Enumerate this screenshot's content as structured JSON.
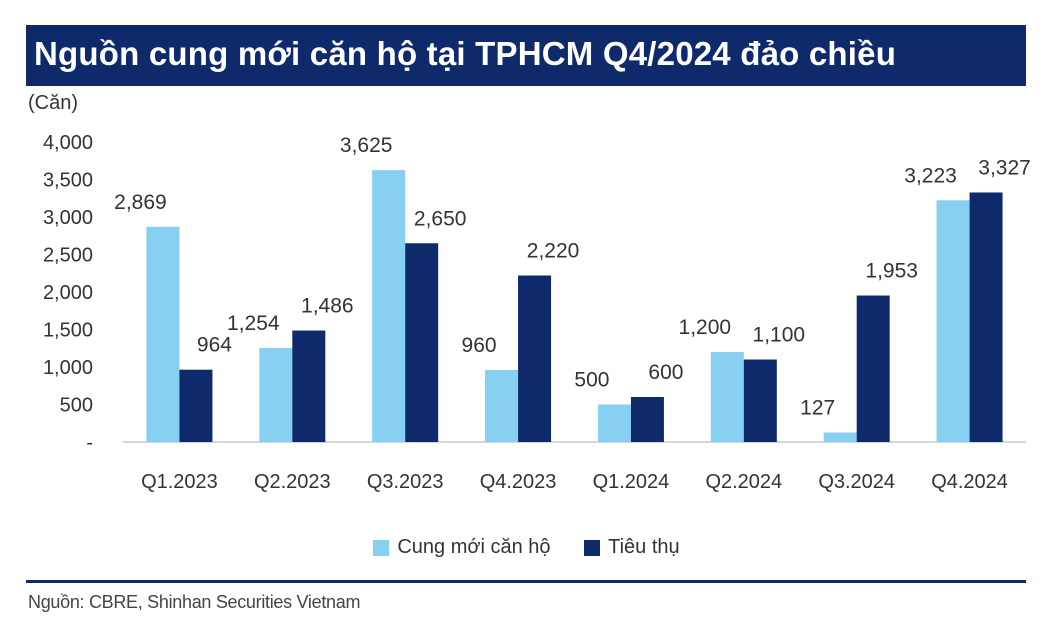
{
  "header": {
    "title": "Nguồn cung mới căn hộ tại TPHCM Q4/2024 đảo chiều"
  },
  "source": "Nguồn: CBRE, Shinhan Securities Vietnam",
  "colors": {
    "title_bg": "#0f2a6b",
    "supply": "#87d0f2",
    "sales": "#0f2a6b",
    "axis": "#c9c9c9"
  },
  "chart_data": {
    "type": "bar",
    "unit_label": "(Căn)",
    "categories": [
      "Q1.2023",
      "Q2.2023",
      "Q3.2023",
      "Q4.2023",
      "Q1.2024",
      "Q2.2024",
      "Q3.2024",
      "Q4.2024"
    ],
    "series": [
      {
        "name": "Cung mới căn hộ",
        "values": [
          2869,
          1254,
          3625,
          960,
          500,
          1200,
          127,
          3223
        ],
        "labels": [
          "2,869",
          "1,254",
          "3,625",
          "960",
          "500",
          "1,200",
          "127",
          "3,223"
        ]
      },
      {
        "name": "Tiêu thụ",
        "values": [
          964,
          1486,
          2650,
          2220,
          600,
          1100,
          1953,
          3327
        ],
        "labels": [
          "964",
          "1,486",
          "2,650",
          "2,220",
          "600",
          "1,100",
          "1,953",
          "3,327"
        ]
      }
    ],
    "ylim": [
      0,
      4000
    ],
    "yticks": [
      0,
      500,
      1000,
      1500,
      2000,
      2500,
      3000,
      3500,
      4000
    ],
    "ytick_labels": [
      "-",
      "500",
      "1,000",
      "1,500",
      "2,000",
      "2,500",
      "3,000",
      "3,500",
      "4,000"
    ],
    "legend_position": "bottom-center",
    "grid": false
  }
}
